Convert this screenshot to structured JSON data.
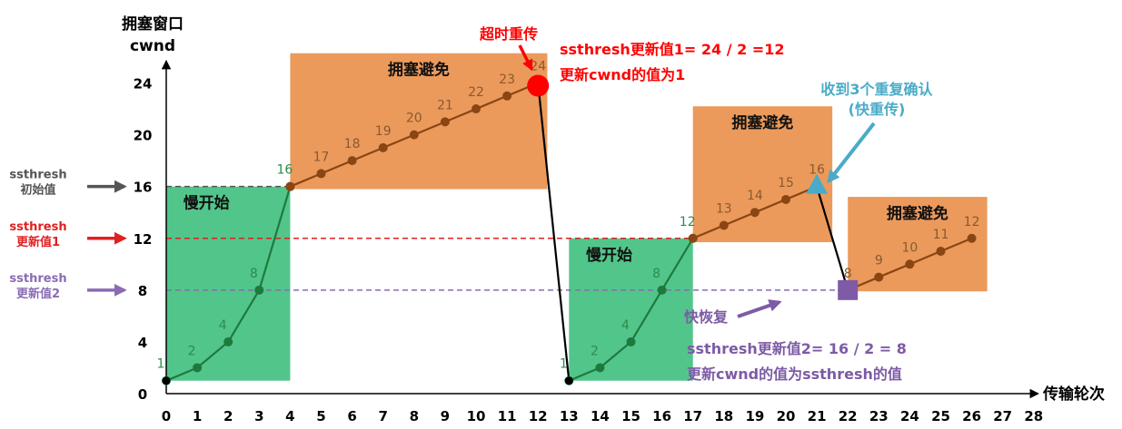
{
  "chart_data": {
    "type": "line",
    "ylabel_line1": "拥塞窗口",
    "ylabel_line2": "cwnd",
    "xlabel": "传输轮次",
    "xlim": [
      0,
      28
    ],
    "ylim": [
      0,
      24
    ],
    "x_ticks": [
      0,
      1,
      2,
      3,
      4,
      5,
      6,
      7,
      8,
      9,
      10,
      11,
      12,
      13,
      14,
      15,
      16,
      17,
      18,
      19,
      20,
      21,
      22,
      23,
      24,
      25,
      26,
      27,
      28
    ],
    "y_ticks": [
      0,
      4,
      8,
      12,
      16,
      20,
      24
    ],
    "grid": false,
    "segments": [
      {
        "phase": "slow-start",
        "color": "#1e7a3c",
        "points": [
          [
            0,
            1
          ],
          [
            1,
            2
          ],
          [
            2,
            4
          ],
          [
            3,
            8
          ],
          [
            4,
            16
          ]
        ]
      },
      {
        "phase": "congestion-avoidance",
        "color": "#8b4513",
        "points": [
          [
            4,
            16
          ],
          [
            5,
            17
          ],
          [
            6,
            18
          ],
          [
            7,
            19
          ],
          [
            8,
            20
          ],
          [
            9,
            21
          ],
          [
            10,
            22
          ],
          [
            11,
            23
          ],
          [
            12,
            24
          ]
        ]
      },
      {
        "phase": "timeout-drop",
        "color": "#000000",
        "points": [
          [
            12,
            24
          ],
          [
            13,
            1
          ]
        ]
      },
      {
        "phase": "slow-start",
        "color": "#1e7a3c",
        "points": [
          [
            13,
            1
          ],
          [
            14,
            2
          ],
          [
            15,
            4
          ],
          [
            16,
            8
          ],
          [
            17,
            12
          ]
        ]
      },
      {
        "phase": "congestion-avoidance",
        "color": "#8b4513",
        "points": [
          [
            17,
            12
          ],
          [
            18,
            13
          ],
          [
            19,
            14
          ],
          [
            20,
            15
          ],
          [
            21,
            16
          ]
        ]
      },
      {
        "phase": "fast-recovery-drop",
        "color": "#000000",
        "points": [
          [
            21,
            16
          ],
          [
            22,
            8
          ]
        ]
      },
      {
        "phase": "congestion-avoidance",
        "color": "#8b4513",
        "points": [
          [
            22,
            8
          ],
          [
            23,
            9
          ],
          [
            24,
            10
          ],
          [
            25,
            11
          ],
          [
            26,
            12
          ]
        ]
      }
    ],
    "regions": [
      {
        "label": "慢开始",
        "color": "#52c58a",
        "x": [
          0,
          4
        ],
        "y": [
          1,
          16
        ]
      },
      {
        "label": "拥塞避免",
        "color": "#eb9a5c",
        "x": [
          4,
          12.3
        ],
        "y": [
          15.8,
          26.3
        ]
      },
      {
        "label": "慢开始",
        "color": "#52c58a",
        "x": [
          13,
          17
        ],
        "y": [
          1,
          12
        ]
      },
      {
        "label": "拥塞避免",
        "color": "#eb9a5c",
        "x": [
          17,
          21.5
        ],
        "y": [
          11.7,
          22.2
        ]
      },
      {
        "label": "拥塞避免",
        "color": "#eb9a5c",
        "x": [
          22,
          26.5
        ],
        "y": [
          7.9,
          15.2
        ]
      }
    ],
    "thresholds": [
      {
        "value": 16,
        "line1": "ssthresh",
        "line2": "初始值",
        "color": "#555555",
        "until": 4
      },
      {
        "value": 12,
        "line1": "ssthresh",
        "line2": "更新值1",
        "color": "#e02020",
        "until": 17
      },
      {
        "value": 8,
        "line1": "ssthresh",
        "line2": "更新值2",
        "color": "#8a6bb5",
        "until": 22
      }
    ],
    "events": {
      "timeout": {
        "label": "超时重传",
        "color": "#ff0000",
        "at": [
          12,
          24
        ],
        "note1": "ssthresh更新值1= 24 / 2 =12",
        "note2": "更新cwnd的值为1"
      },
      "triple_ack": {
        "label1": "收到3个重复确认",
        "label2": "(快重传)",
        "color": "#4aabc9",
        "at": [
          21,
          16
        ]
      },
      "fast_recovery": {
        "label": "快恢复",
        "color": "#7d5ba6",
        "at": [
          22,
          8
        ],
        "note1": "ssthresh更新值2= 16 / 2 = 8",
        "note2": "更新cwnd的值为ssthresh的值"
      }
    }
  }
}
